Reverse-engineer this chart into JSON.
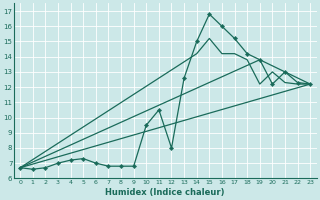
{
  "xlabel": "Humidex (Indice chaleur)",
  "bg_color": "#cce8e8",
  "line_color": "#1a6b5a",
  "grid_color": "#b0d0d0",
  "xlim": [
    -0.5,
    23.5
  ],
  "ylim": [
    6,
    17.5
  ],
  "xticks": [
    0,
    1,
    2,
    3,
    4,
    5,
    6,
    7,
    8,
    9,
    10,
    11,
    12,
    13,
    14,
    15,
    16,
    17,
    18,
    19,
    20,
    21,
    22,
    23
  ],
  "yticks": [
    6,
    7,
    8,
    9,
    10,
    11,
    12,
    13,
    14,
    15,
    16,
    17
  ],
  "main_x": [
    0,
    1,
    2,
    3,
    4,
    5,
    6,
    7,
    8,
    9,
    10,
    11,
    12,
    13,
    14,
    15,
    16,
    17,
    18,
    19,
    20,
    21,
    22,
    23
  ],
  "main_y": [
    6.7,
    6.6,
    6.7,
    7.0,
    7.2,
    7.3,
    7.0,
    6.8,
    6.8,
    6.8,
    9.5,
    10.5,
    8.0,
    12.6,
    15.0,
    16.8,
    16.0,
    15.2,
    14.2,
    13.8,
    12.2,
    13.0,
    12.3,
    12.2
  ],
  "line2_x": [
    0,
    14,
    15,
    16,
    17,
    18,
    19,
    20,
    21,
    22,
    23
  ],
  "line2_y": [
    6.7,
    14.2,
    15.2,
    14.2,
    14.2,
    13.8,
    12.2,
    13.0,
    12.3,
    12.2,
    12.2
  ],
  "line3_x": [
    0,
    19,
    23
  ],
  "line3_y": [
    6.7,
    13.8,
    12.2
  ],
  "line4_x": [
    0,
    23
  ],
  "line4_y": [
    6.7,
    12.2
  ]
}
